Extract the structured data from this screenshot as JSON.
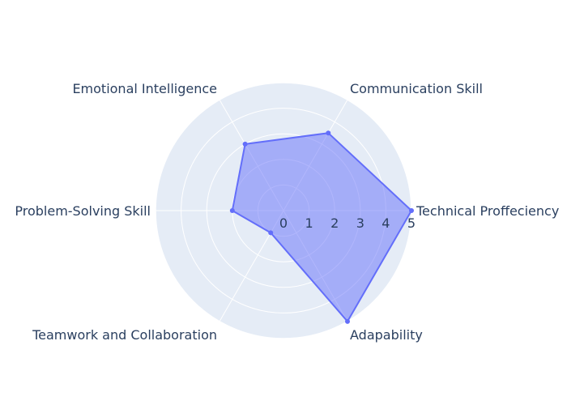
{
  "chart_data": {
    "type": "radar",
    "categories": [
      "Technical Proffeciency",
      "Communication Skill",
      "Emotional Intelligence",
      "Problem-Solving Skill",
      "Teamwork and Collaboration",
      "Adapability"
    ],
    "series": [
      {
        "values": [
          5,
          3.5,
          3,
          2,
          1,
          5
        ]
      }
    ],
    "radial_range": [
      0,
      5
    ],
    "radial_ticks": [
      "0",
      "1",
      "2",
      "3",
      "4",
      "5"
    ],
    "grid": true,
    "colors": {
      "polar_bg": "#e5ecf6",
      "grid": "#ffffff",
      "line": "#636efa",
      "fill": "rgba(99,110,250,0.5)",
      "text": "#2a3f5f"
    }
  }
}
